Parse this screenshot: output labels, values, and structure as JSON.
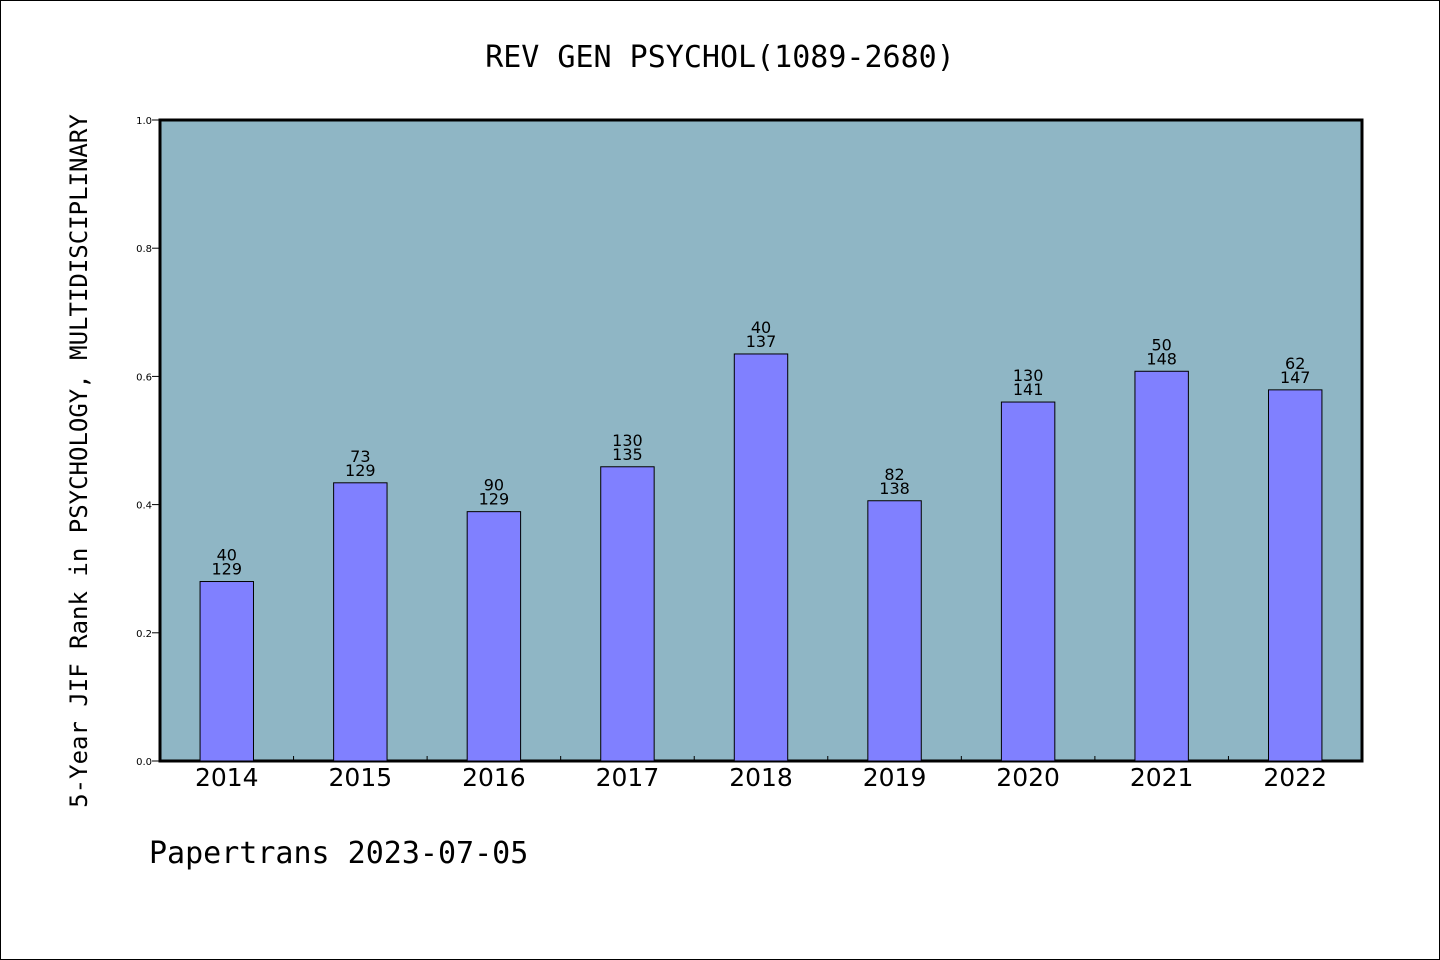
{
  "chart_data": {
    "type": "bar",
    "title": "REV GEN PSYCHOL(1089-2680)",
    "ylabel": "5-Year JIF Rank in PSYCHOLOGY, MULTIDISCIPLINARY",
    "xlabel": "",
    "ylim": [
      0.0,
      1.0
    ],
    "yticks": [
      "0.0",
      "0.2",
      "0.4",
      "0.6",
      "0.8",
      "1.0"
    ],
    "categories": [
      "2014",
      "2015",
      "2016",
      "2017",
      "2018",
      "2019",
      "2020",
      "2021",
      "2022"
    ],
    "values": [
      0.28,
      0.434,
      0.389,
      0.459,
      0.635,
      0.406,
      0.56,
      0.608,
      0.579
    ],
    "rank": [
      "40",
      "73",
      "90",
      "130",
      "40",
      "82",
      "130",
      "50",
      "62"
    ],
    "total": [
      "129",
      "129",
      "129",
      "135",
      "137",
      "138",
      "141",
      "148",
      "147"
    ],
    "grid": false,
    "colors": {
      "plot_bg": "#8fb6c5",
      "bar": "#8080ff",
      "bar_edge": "#000000"
    }
  },
  "footer": "Papertrans 2023-07-05"
}
